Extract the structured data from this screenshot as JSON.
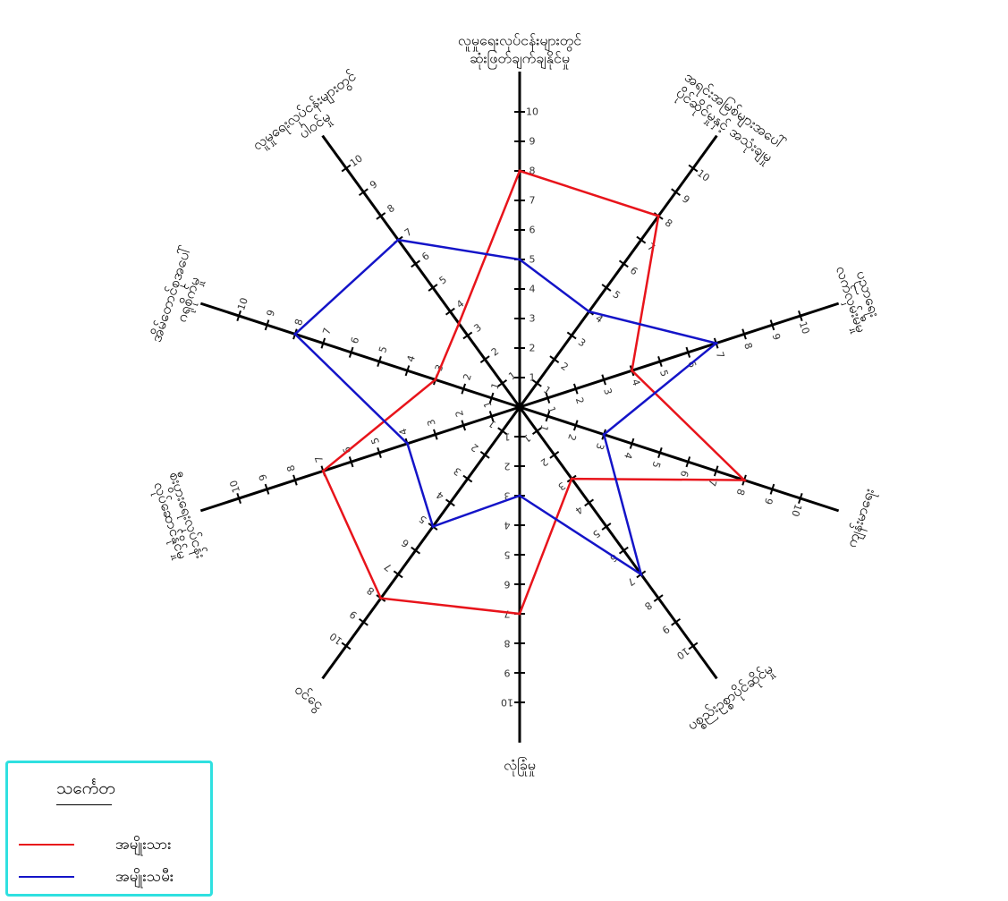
{
  "chart_data": {
    "type": "radar",
    "axes": [
      {
        "label": [
          "လူမှုရေးလုပ်ငန်းများတွင်",
          "ဆုံးဖြတ်ချက်ချနိုင်မှု"
        ]
      },
      {
        "label": [
          "အရင်းအမြစ်များအပေါ်",
          "ပိုင်ဆိုင်မှုနှင့် အသုံးချမှု"
        ]
      },
      {
        "label": [
          "ပညာရေး",
          "လက်လှမ်းမီမှု"
        ]
      },
      {
        "label": [
          "ကျန်းမာရေး"
        ]
      },
      {
        "label": [
          "ပစ္စည်းဥစ္စာပိုင်ဆိုင်မှု"
        ]
      },
      {
        "label": [
          "လုံခြုံမှု"
        ]
      },
      {
        "label": [
          "ဝင်ငွေ"
        ]
      },
      {
        "label": [
          "စီးပွားရေးလုပ်ငန်း",
          "လုပ်ဆောင်နိုင်မှု"
        ]
      },
      {
        "label": [
          "အိမ်တောင်စုအပေါ်",
          "ဂရုစိုက်မှု"
        ]
      },
      {
        "label": [
          "လူမှုရေးလုပ်ငန်းများတွင်",
          "ပါဝင်မှု"
        ]
      }
    ],
    "range": [
      0,
      10
    ],
    "ticks": [
      1,
      2,
      3,
      4,
      5,
      6,
      7,
      8,
      9,
      10
    ],
    "series": [
      {
        "name": "အမျိုးသား",
        "color": "#e8141b",
        "values": [
          8,
          8,
          4,
          8,
          3,
          7,
          8,
          7,
          3,
          3.5
        ]
      },
      {
        "name": "အမျိုးသမီး",
        "color": "#1414c8",
        "values": [
          5,
          4,
          7,
          3,
          7,
          3,
          5,
          4,
          8,
          7
        ]
      }
    ],
    "legend": {
      "title": "သင်္ကေတ",
      "position": "bottom-left"
    }
  }
}
